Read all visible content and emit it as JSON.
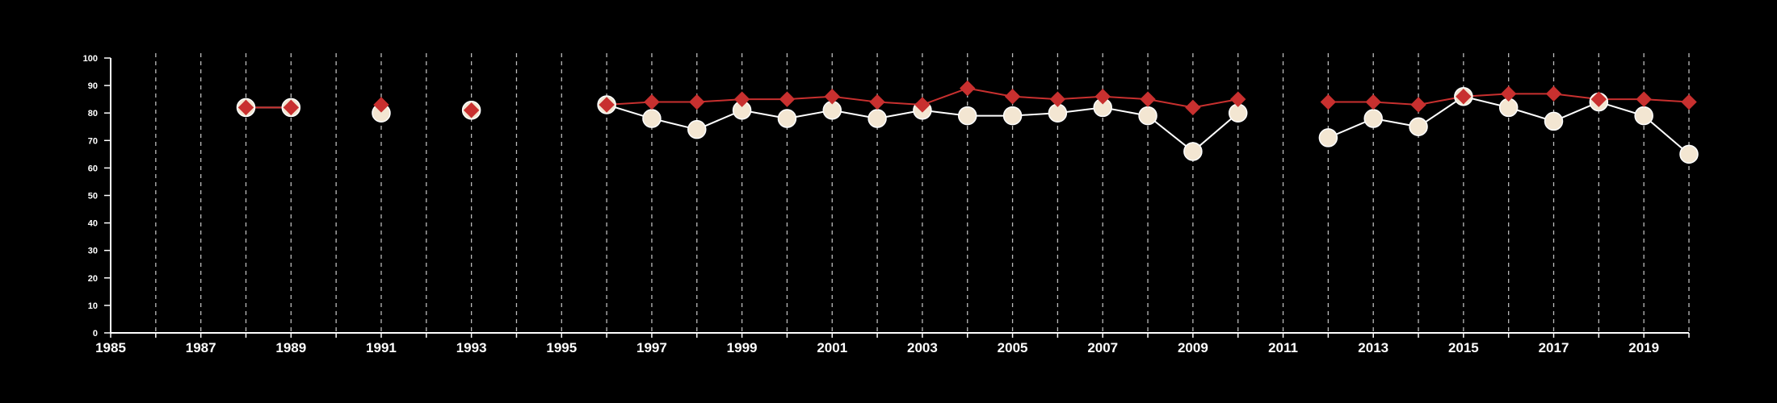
{
  "chart_data": {
    "type": "line",
    "title": "",
    "xlabel": "",
    "ylabel": "",
    "xlim": [
      1985,
      2020
    ],
    "ylim": [
      0,
      100
    ],
    "x_ticks": [
      1985,
      1987,
      1989,
      1991,
      1993,
      1995,
      1997,
      1999,
      2001,
      2003,
      2005,
      2007,
      2009,
      2011,
      2013,
      2015,
      2017,
      2019
    ],
    "y_ticks": [
      0,
      10,
      20,
      30,
      40,
      50,
      60,
      70,
      80,
      90,
      100
    ],
    "vertical_gridlines": "dashed, every year",
    "colors": {
      "background": "#000000",
      "axis": "#ffffff",
      "grid": "#bbbbbb",
      "series_circle_fill": "#f3e6d2",
      "series_circle_line": "#ffffff",
      "series_diamond": "#c8302f"
    },
    "series": [
      {
        "marker": "circle",
        "points": [
          [
            1988,
            82
          ],
          [
            1989,
            82
          ],
          [
            1991,
            80
          ],
          [
            1993,
            81
          ],
          [
            1996,
            83
          ],
          [
            1997,
            78
          ],
          [
            1998,
            74
          ],
          [
            1999,
            81
          ],
          [
            2000,
            78
          ],
          [
            2001,
            81
          ],
          [
            2002,
            78
          ],
          [
            2003,
            81
          ],
          [
            2004,
            79
          ],
          [
            2005,
            79
          ],
          [
            2006,
            80
          ],
          [
            2007,
            82
          ],
          [
            2008,
            79
          ],
          [
            2009,
            66
          ],
          [
            2010,
            80
          ],
          [
            2012,
            71
          ],
          [
            2013,
            78
          ],
          [
            2014,
            75
          ],
          [
            2015,
            86
          ],
          [
            2016,
            82
          ],
          [
            2017,
            77
          ],
          [
            2018,
            84
          ],
          [
            2019,
            79
          ],
          [
            2020,
            65
          ]
        ]
      },
      {
        "marker": "diamond",
        "points": [
          [
            1988,
            82
          ],
          [
            1989,
            82
          ],
          [
            1991,
            83
          ],
          [
            1993,
            81
          ],
          [
            1996,
            83
          ],
          [
            1997,
            84
          ],
          [
            1998,
            84
          ],
          [
            1999,
            85
          ],
          [
            2000,
            85
          ],
          [
            2001,
            86
          ],
          [
            2002,
            84
          ],
          [
            2003,
            83
          ],
          [
            2004,
            89
          ],
          [
            2005,
            86
          ],
          [
            2006,
            85
          ],
          [
            2007,
            86
          ],
          [
            2008,
            85
          ],
          [
            2009,
            82
          ],
          [
            2010,
            85
          ],
          [
            2012,
            84
          ],
          [
            2013,
            84
          ],
          [
            2014,
            83
          ],
          [
            2015,
            86
          ],
          [
            2016,
            87
          ],
          [
            2017,
            87
          ],
          [
            2018,
            85
          ],
          [
            2019,
            85
          ],
          [
            2020,
            84
          ]
        ]
      }
    ]
  }
}
